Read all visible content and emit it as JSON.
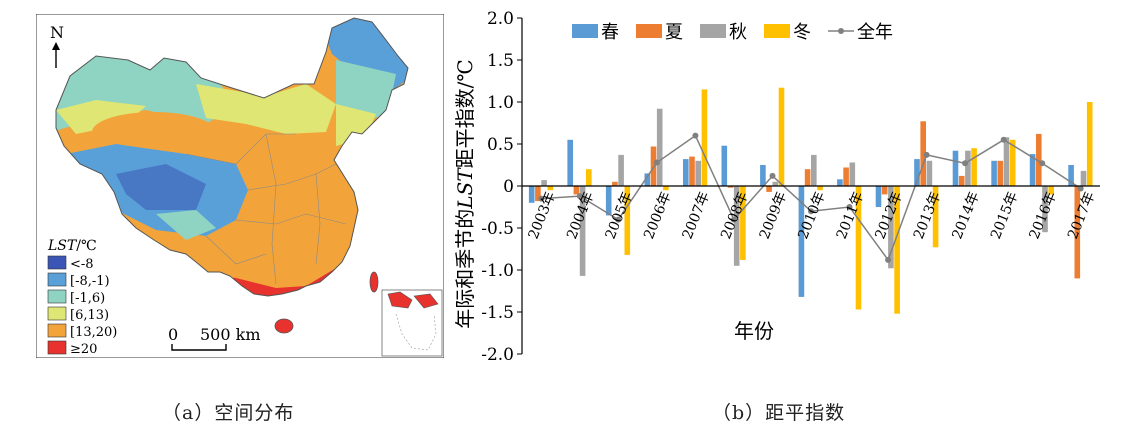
{
  "map_panel": {
    "north_label": "N",
    "legend": {
      "title_italic": "LST",
      "title_unit": "/℃",
      "items": [
        {
          "label": "<-8",
          "color": "#3a55b5"
        },
        {
          "label": "[-8,-1)",
          "color": "#5aa0d8"
        },
        {
          "label": "[-1,6)",
          "color": "#8fd4c2"
        },
        {
          "label": "[6,13)",
          "color": "#dfe673"
        },
        {
          "label": "[13,20)",
          "color": "#f2a43a"
        },
        {
          "label": "≥20",
          "color": "#e8322e"
        }
      ]
    },
    "scale_bar": {
      "zero": "0",
      "distance": "500 km"
    }
  },
  "captions": {
    "a": "（a）空间分布",
    "b": "（b）距平指数"
  },
  "chart_data": {
    "type": "bar",
    "categories": [
      "2003年",
      "2004年",
      "2005年",
      "2006年",
      "2007年",
      "2008年",
      "2009年",
      "2010年",
      "2011年",
      "2012年",
      "2013年",
      "2014年",
      "2015年",
      "2016年",
      "2017年"
    ],
    "series": [
      {
        "name": "春",
        "color": "#5b9bd5",
        "values": [
          -0.2,
          0.55,
          -0.35,
          0.15,
          0.32,
          0.48,
          0.25,
          -1.32,
          0.08,
          -0.25,
          0.32,
          0.42,
          0.3,
          0.38,
          0.25
        ]
      },
      {
        "name": "夏",
        "color": "#ed7d31",
        "values": [
          -0.18,
          -0.1,
          0.05,
          0.47,
          0.35,
          -0.02,
          -0.07,
          0.2,
          0.22,
          -0.1,
          0.77,
          0.12,
          0.3,
          0.62,
          -1.1
        ]
      },
      {
        "name": "秋",
        "color": "#a5a5a5",
        "values": [
          0.07,
          -1.07,
          0.37,
          0.92,
          0.3,
          -0.95,
          0.05,
          0.37,
          0.28,
          -0.98,
          0.3,
          0.42,
          0.58,
          -0.55,
          0.18
        ]
      },
      {
        "name": "冬",
        "color": "#ffc000",
        "values": [
          -0.05,
          0.2,
          -0.82,
          -0.05,
          1.15,
          -0.88,
          1.17,
          -0.05,
          -1.47,
          -1.52,
          -0.73,
          0.45,
          0.55,
          -0.1,
          1.0
        ]
      }
    ],
    "line_series": {
      "name": "全年",
      "color": "#808080",
      "values": [
        -0.15,
        -0.12,
        -0.4,
        0.28,
        0.6,
        -0.4,
        0.12,
        -0.3,
        -0.25,
        -0.88,
        0.37,
        0.27,
        0.55,
        0.27,
        -0.03
      ]
    },
    "xlabel": "年份",
    "ylabel_prefix": "年际和季节的",
    "ylabel_italic": "LST",
    "ylabel_suffix": "距平指数/℃",
    "y_ticks": [
      "2.0",
      "1.5",
      "1.0",
      "0.5",
      "0",
      "-0.5",
      "-1.0",
      "-1.5",
      "-2.0"
    ],
    "ylim": [
      -2.0,
      2.0
    ],
    "grid": false,
    "legend_position": "top"
  }
}
